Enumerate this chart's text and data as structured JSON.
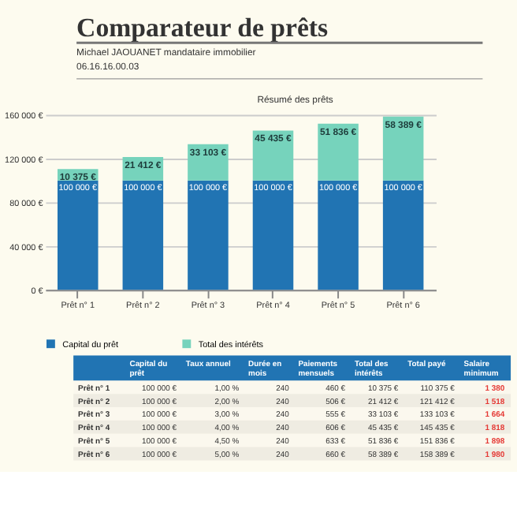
{
  "chart_data": {
    "type": "bar",
    "title": "Comparateur de prêts",
    "subtitle": [
      "Michael JAOUANET mandataire immobilier",
      "06.16.16.00.03"
    ],
    "categories": [
      "Prêt n° 1",
      "Prêt n° 2",
      "Prêt n° 3",
      "Prêt n° 4",
      "Prêt n° 5",
      "Prêt n° 6"
    ],
    "stacked": true,
    "series": [
      {
        "name": "Capital du prêt",
        "color": "#2174b3",
        "values": [
          100000,
          100000,
          100000,
          100000,
          100000,
          100000
        ],
        "value_labels": [
          "100 000 €",
          "100 000 €",
          "100 000 €",
          "100 000 €",
          "100 000 €",
          "100 000 €"
        ]
      },
      {
        "name": "Total des intérêts",
        "color": "#76d3bc",
        "values": [
          10375,
          21412,
          33103,
          45435,
          51836,
          58389
        ],
        "value_labels": [
          "10 375 €",
          "21 412 €",
          "33 103 €",
          "45 435 €",
          "51 836 €",
          "58 389 €"
        ]
      }
    ],
    "ylim": [
      0,
      160000
    ],
    "yticks": [
      {
        "value": 0,
        "label": "0 €"
      },
      {
        "value": 40000,
        "label": "40 000 €"
      },
      {
        "value": 80000,
        "label": "80 000 €"
      },
      {
        "value": 120000,
        "label": "120 000 €"
      },
      {
        "value": 160000,
        "label": "160 000 €"
      }
    ],
    "grid": "y",
    "legend": "bottom",
    "annotations": [
      "Résumé des prêts",
      "Capital du prêt",
      "Taux annuel",
      "Durée en mois",
      "Paiements mensuels",
      "Total des intérêts",
      "Total payé",
      "Salaire minimum",
      "Prêt n° 1",
      "100 000 €",
      "1,00 %",
      "240",
      "460 €",
      "10 375 €",
      "110 375 €",
      "1 380",
      "Prêt n° 2",
      "100 000 €",
      "2,00 %",
      "240",
      "506 €",
      "21 412 €",
      "121 412 €",
      "1 518",
      "Prêt n° 3",
      "100 000 €",
      "3,00 %",
      "240",
      "555 €",
      "33 103 €",
      "133 103 €",
      "1 664",
      "Prêt n° 4",
      "100 000 €",
      "4,00 %",
      "240",
      "606 €",
      "45 435 €",
      "145 435 €",
      "1 818",
      "Prêt n° 5",
      "100 000 €",
      "4,50 %",
      "240",
      "633 €",
      "51 836 €",
      "151 836 €",
      "1 898",
      "Prêt n° 6",
      "100 000 €",
      "5,00 %",
      "240",
      "660 €",
      "58 389 €",
      "158 389 €",
      "1 980"
    ]
  }
}
